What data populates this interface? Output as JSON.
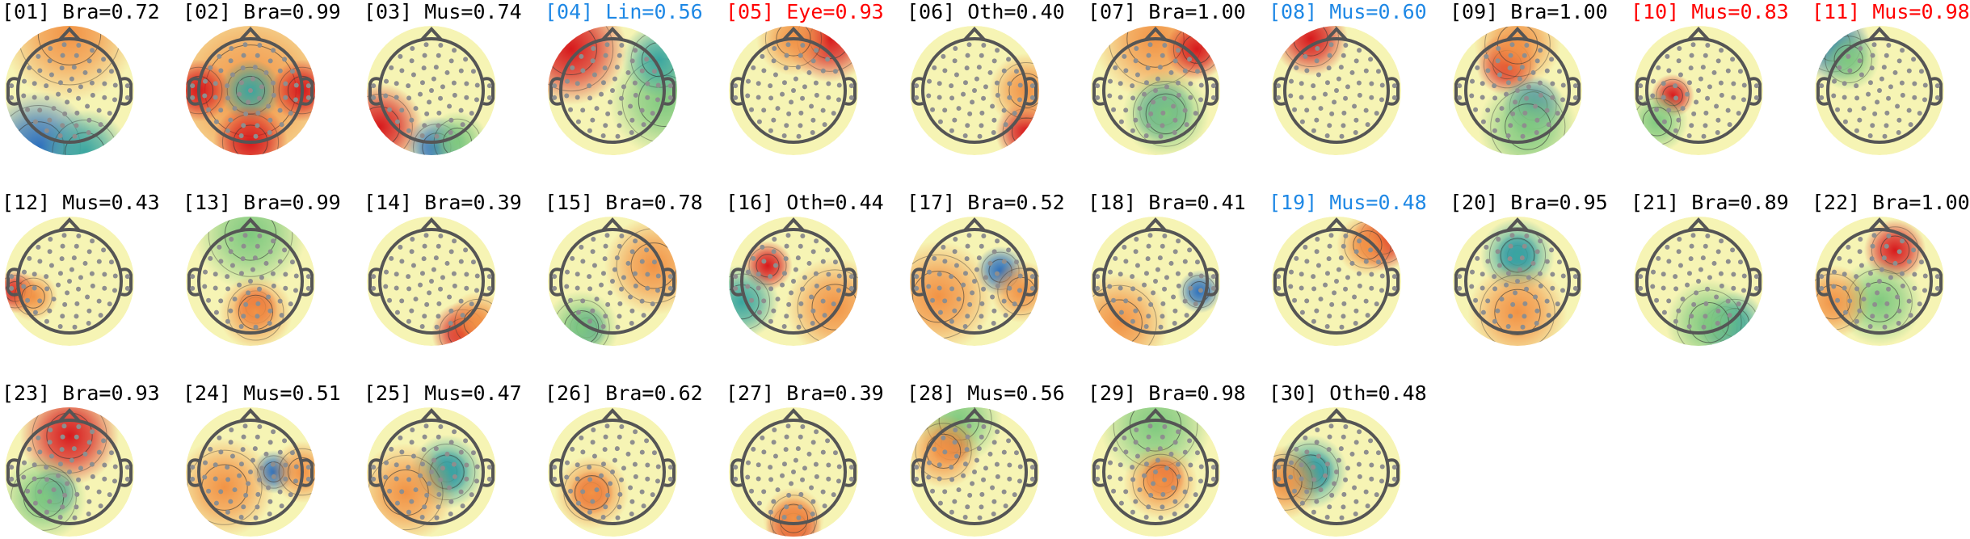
{
  "components": [
    {
      "title": "[01] Bra=0.72",
      "color": "#000000"
    },
    {
      "title": "[02] Bra=0.99",
      "color": "#000000"
    },
    {
      "title": "[03] Mus=0.74",
      "color": "#000000"
    },
    {
      "title": "[04] Lin=0.56",
      "color": "#1e88e5"
    },
    {
      "title": "[05] Eye=0.93",
      "color": "#ff0000"
    },
    {
      "title": "[06] Oth=0.40",
      "color": "#000000"
    },
    {
      "title": "[07] Bra=1.00",
      "color": "#000000"
    },
    {
      "title": "[08] Mus=0.60",
      "color": "#1e88e5"
    },
    {
      "title": "[09] Bra=1.00",
      "color": "#000000"
    },
    {
      "title": "[10] Mus=0.83",
      "color": "#ff0000"
    },
    {
      "title": "[11] Mus=0.98",
      "color": "#ff0000"
    },
    {
      "title": "[12] Mus=0.43",
      "color": "#000000"
    },
    {
      "title": "[13] Bra=0.99",
      "color": "#000000"
    },
    {
      "title": "[14] Bra=0.39",
      "color": "#000000"
    },
    {
      "title": "[15] Bra=0.78",
      "color": "#000000"
    },
    {
      "title": "[16] Oth=0.44",
      "color": "#000000"
    },
    {
      "title": "[17] Bra=0.52",
      "color": "#000000"
    },
    {
      "title": "[18] Bra=0.41",
      "color": "#000000"
    },
    {
      "title": "[19] Mus=0.48",
      "color": "#1e88e5"
    },
    {
      "title": "[20] Bra=0.95",
      "color": "#000000"
    },
    {
      "title": "[21] Bra=0.89",
      "color": "#000000"
    },
    {
      "title": "[22] Bra=1.00",
      "color": "#000000"
    },
    {
      "title": "[23] Bra=0.93",
      "color": "#000000"
    },
    {
      "title": "[24] Mus=0.51",
      "color": "#000000"
    },
    {
      "title": "[25] Mus=0.47",
      "color": "#000000"
    },
    {
      "title": "[26] Bra=0.62",
      "color": "#000000"
    },
    {
      "title": "[27] Bra=0.39",
      "color": "#000000"
    },
    {
      "title": "[28] Mus=0.56",
      "color": "#000000"
    },
    {
      "title": "[29] Bra=0.98",
      "color": "#000000"
    },
    {
      "title": "[30] Oth=0.48",
      "color": "#000000"
    }
  ]
}
